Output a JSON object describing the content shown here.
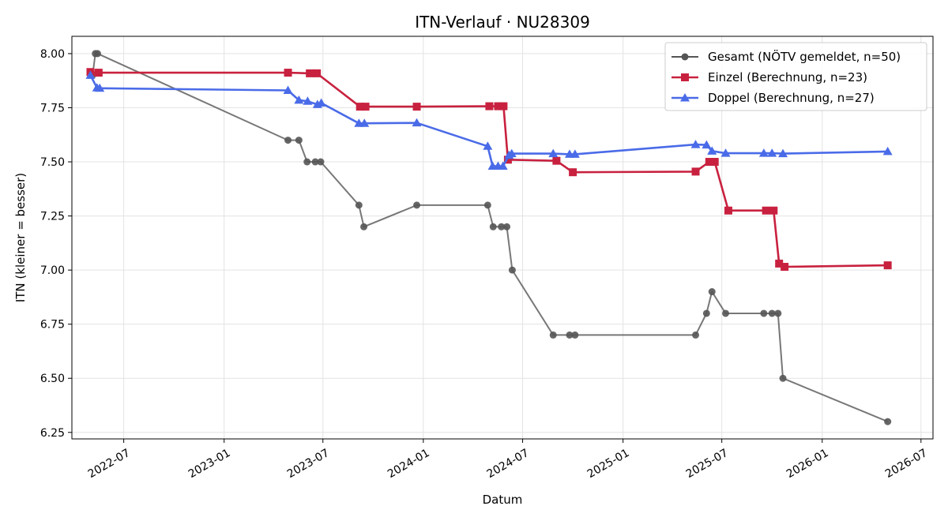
{
  "chart_data": {
    "type": "line",
    "title": "ITN-Verlauf · NU28309",
    "xlabel": "Datum",
    "ylabel": "ITN  (kleiner = besser)",
    "x_axis_type": "date",
    "xlim": [
      "2022-03-28",
      "2026-07-23"
    ],
    "ylim": [
      6.22,
      8.08
    ],
    "y_ticks": [
      8.0,
      7.75,
      7.5,
      7.25,
      7.0,
      6.75,
      6.5,
      6.25
    ],
    "y_tick_labels": [
      "8.00",
      "7.75",
      "7.50",
      "7.25",
      "7.00",
      "6.75",
      "6.50",
      "6.25"
    ],
    "x_ticks": [
      "2022-07-01",
      "2023-01-01",
      "2023-07-01",
      "2024-01-01",
      "2024-07-01",
      "2025-01-01",
      "2025-07-01",
      "2026-01-01",
      "2026-07-01"
    ],
    "x_tick_labels": [
      "2022-07",
      "2023-01",
      "2023-07",
      "2024-01",
      "2024-07",
      "2025-01",
      "2025-07",
      "2026-01",
      "2026-07"
    ],
    "grid": true,
    "legend_position": "top-right",
    "series": [
      {
        "name": "Gesamt (NÖTV gemeldet, n=50)",
        "color": "#555555",
        "marker": "circle",
        "points": [
          {
            "x": "2022-05-05",
            "y": 7.9
          },
          {
            "x": "2022-05-10",
            "y": 8.0
          },
          {
            "x": "2022-05-14",
            "y": 8.0
          },
          {
            "x": "2023-04-28",
            "y": 7.6
          },
          {
            "x": "2023-05-18",
            "y": 7.6
          },
          {
            "x": "2023-06-02",
            "y": 7.5
          },
          {
            "x": "2023-06-17",
            "y": 7.5
          },
          {
            "x": "2023-06-27",
            "y": 7.5
          },
          {
            "x": "2023-09-05",
            "y": 7.3
          },
          {
            "x": "2023-09-14",
            "y": 7.2
          },
          {
            "x": "2023-12-20",
            "y": 7.3
          },
          {
            "x": "2024-04-28",
            "y": 7.3
          },
          {
            "x": "2024-05-08",
            "y": 7.2
          },
          {
            "x": "2024-05-23",
            "y": 7.2
          },
          {
            "x": "2024-06-02",
            "y": 7.2
          },
          {
            "x": "2024-06-12",
            "y": 7.0
          },
          {
            "x": "2024-08-26",
            "y": 6.7
          },
          {
            "x": "2024-09-25",
            "y": 6.7
          },
          {
            "x": "2024-10-05",
            "y": 6.7
          },
          {
            "x": "2025-05-14",
            "y": 6.7
          },
          {
            "x": "2025-06-03",
            "y": 6.8
          },
          {
            "x": "2025-06-13",
            "y": 6.9
          },
          {
            "x": "2025-07-08",
            "y": 6.8
          },
          {
            "x": "2025-09-16",
            "y": 6.8
          },
          {
            "x": "2025-10-01",
            "y": 6.8
          },
          {
            "x": "2025-10-12",
            "y": 6.8
          },
          {
            "x": "2025-10-21",
            "y": 6.5
          },
          {
            "x": "2026-05-01",
            "y": 6.3
          }
        ]
      },
      {
        "name": "Einzel (Berechnung, n=23)",
        "color": "#c8213f",
        "marker": "square",
        "points": [
          {
            "x": "2022-05-01",
            "y": 7.915
          },
          {
            "x": "2022-05-16",
            "y": 7.912
          },
          {
            "x": "2023-04-28",
            "y": 7.912
          },
          {
            "x": "2023-06-07",
            "y": 7.909
          },
          {
            "x": "2023-06-20",
            "y": 7.909
          },
          {
            "x": "2023-09-07",
            "y": 7.755
          },
          {
            "x": "2023-09-17",
            "y": 7.755
          },
          {
            "x": "2023-12-20",
            "y": 7.755
          },
          {
            "x": "2024-05-01",
            "y": 7.757
          },
          {
            "x": "2024-05-17",
            "y": 7.757
          },
          {
            "x": "2024-05-27",
            "y": 7.757
          },
          {
            "x": "2024-06-04",
            "y": 7.51
          },
          {
            "x": "2024-09-01",
            "y": 7.505
          },
          {
            "x": "2024-10-01",
            "y": 7.452
          },
          {
            "x": "2025-05-14",
            "y": 7.455
          },
          {
            "x": "2025-06-08",
            "y": 7.5
          },
          {
            "x": "2025-06-18",
            "y": 7.5
          },
          {
            "x": "2025-07-13",
            "y": 7.275
          },
          {
            "x": "2025-09-20",
            "y": 7.275
          },
          {
            "x": "2025-10-04",
            "y": 7.275
          },
          {
            "x": "2025-10-14",
            "y": 7.03
          },
          {
            "x": "2025-10-24",
            "y": 7.015
          },
          {
            "x": "2026-05-01",
            "y": 7.022
          }
        ]
      },
      {
        "name": "Doppel (Berechnung, n=27)",
        "color": "#4a6be8",
        "marker": "triangle",
        "points": [
          {
            "x": "2022-05-01",
            "y": 7.9
          },
          {
            "x": "2022-05-13",
            "y": 7.842
          },
          {
            "x": "2022-05-18",
            "y": 7.84
          },
          {
            "x": "2023-04-28",
            "y": 7.83
          },
          {
            "x": "2023-05-18",
            "y": 7.785
          },
          {
            "x": "2023-06-03",
            "y": 7.78
          },
          {
            "x": "2023-06-21",
            "y": 7.765
          },
          {
            "x": "2023-06-28",
            "y": 7.772
          },
          {
            "x": "2023-09-05",
            "y": 7.678
          },
          {
            "x": "2023-09-15",
            "y": 7.678
          },
          {
            "x": "2023-12-20",
            "y": 7.68
          },
          {
            "x": "2024-04-28",
            "y": 7.572
          },
          {
            "x": "2024-05-07",
            "y": 7.48
          },
          {
            "x": "2024-05-17",
            "y": 7.48
          },
          {
            "x": "2024-05-26",
            "y": 7.48
          },
          {
            "x": "2024-06-06",
            "y": 7.53
          },
          {
            "x": "2024-06-11",
            "y": 7.538
          },
          {
            "x": "2024-08-26",
            "y": 7.538
          },
          {
            "x": "2024-09-25",
            "y": 7.535
          },
          {
            "x": "2024-10-05",
            "y": 7.535
          },
          {
            "x": "2025-05-14",
            "y": 7.58
          },
          {
            "x": "2025-06-03",
            "y": 7.578
          },
          {
            "x": "2025-06-13",
            "y": 7.55
          },
          {
            "x": "2025-07-08",
            "y": 7.54
          },
          {
            "x": "2025-09-16",
            "y": 7.54
          },
          {
            "x": "2025-10-01",
            "y": 7.54
          },
          {
            "x": "2025-10-21",
            "y": 7.538
          },
          {
            "x": "2026-05-01",
            "y": 7.548
          }
        ]
      }
    ]
  }
}
